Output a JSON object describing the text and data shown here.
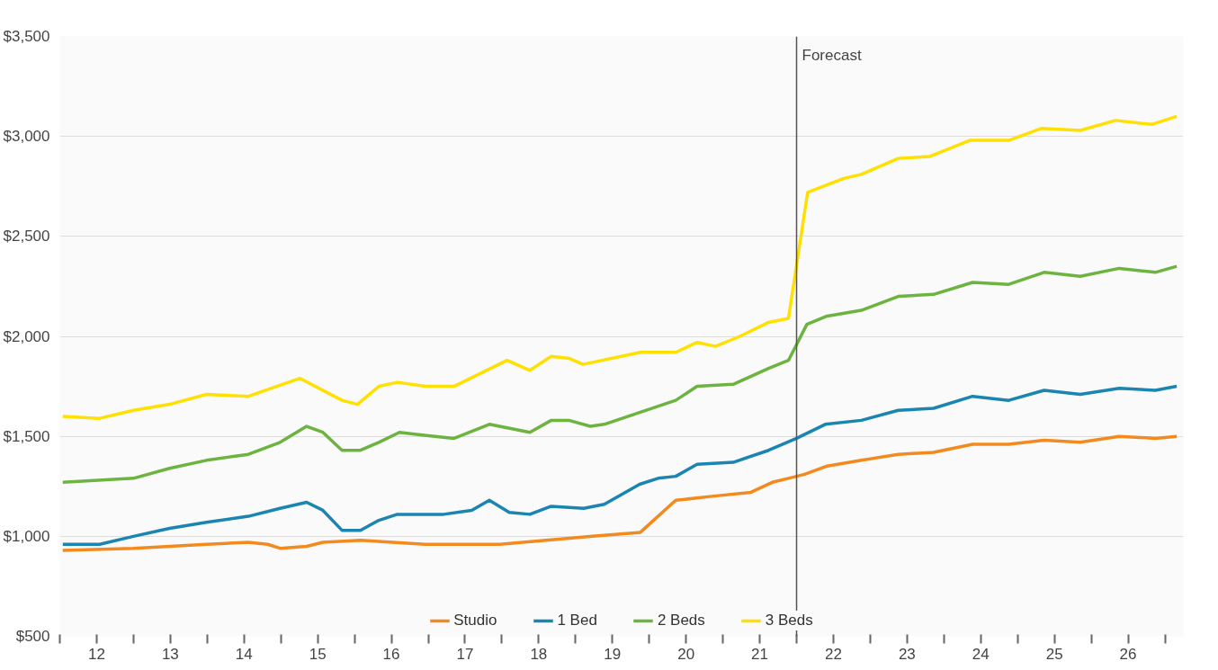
{
  "chart_data": {
    "type": "line",
    "xlim": [
      11.5,
      26.75
    ],
    "xticks": [
      {
        "value": 11.5,
        "label": null
      },
      12,
      {
        "value": 12.5,
        "label": null
      },
      13,
      {
        "value": 13.5,
        "label": null
      },
      14,
      {
        "value": 14.5,
        "label": null
      },
      15,
      {
        "value": 15.5,
        "label": null
      },
      16,
      {
        "value": 16.5,
        "label": null
      },
      17,
      {
        "value": 17.5,
        "label": null
      },
      18,
      {
        "value": 18.5,
        "label": null
      },
      19,
      {
        "value": 19.5,
        "label": null
      },
      20,
      {
        "value": 20.5,
        "label": null
      },
      21,
      {
        "value": 21.5,
        "label": null
      },
      22,
      {
        "value": 22.5,
        "label": null
      },
      23,
      {
        "value": 23.5,
        "label": null
      },
      24,
      {
        "value": 24.5,
        "label": null
      },
      25,
      {
        "value": 25.5,
        "label": null
      },
      26,
      {
        "value": 26.5,
        "label": null
      }
    ],
    "ylim": [
      500,
      3500
    ],
    "yticks": [
      {
        "value": 500,
        "label": "$500"
      },
      {
        "value": 1000,
        "label": "$1,000"
      },
      {
        "value": 1500,
        "label": "$1,500"
      },
      {
        "value": 2000,
        "label": "$2,000"
      },
      {
        "value": 2500,
        "label": "$2,500"
      },
      {
        "value": 3000,
        "label": "$3,000"
      },
      {
        "value": 3500,
        "label": "$3,500"
      }
    ],
    "grid": "y",
    "legend": "bottom",
    "marker": "none",
    "line_style": "solid",
    "ref_lines": [
      {
        "axis": "x",
        "value": 21.5,
        "label": "Forecast",
        "color": "#555555"
      }
    ],
    "series": [
      {
        "name": "Studio",
        "color": "#f28a1e",
        "x": [
          11.54,
          12.5,
          13.49,
          14.06,
          14.32,
          14.49,
          14.85,
          15.07,
          15.58,
          16.46,
          17.47,
          18.1,
          18.73,
          19.38,
          19.86,
          20.35,
          20.88,
          21.17,
          21.39,
          21.61,
          21.9,
          22.38,
          22.88,
          23.36,
          23.89,
          24.38,
          24.86,
          25.35,
          25.88,
          26.37,
          26.66
        ],
        "values": [
          930,
          940,
          960,
          970,
          960,
          940,
          950,
          970,
          980,
          960,
          960,
          980,
          1000,
          1020,
          1180,
          1200,
          1220,
          1270,
          1290,
          1310,
          1350,
          1380,
          1410,
          1420,
          1460,
          1460,
          1480,
          1470,
          1500,
          1490,
          1500
        ]
      },
      {
        "name": "1 Bed",
        "color": "#1a85b0",
        "x": [
          11.54,
          12.04,
          12.5,
          12.99,
          13.49,
          14.06,
          14.49,
          14.85,
          15.07,
          15.33,
          15.58,
          15.83,
          16.08,
          16.71,
          17.09,
          17.33,
          17.6,
          17.88,
          18.17,
          18.61,
          18.89,
          19.37,
          19.62,
          19.86,
          20.15,
          20.64,
          21.12,
          21.5,
          21.89,
          22.38,
          22.88,
          23.36,
          23.89,
          24.38,
          24.86,
          25.35,
          25.88,
          26.37,
          26.66
        ],
        "values": [
          960,
          960,
          1000,
          1040,
          1070,
          1100,
          1140,
          1170,
          1130,
          1030,
          1030,
          1080,
          1110,
          1110,
          1130,
          1180,
          1120,
          1110,
          1150,
          1140,
          1160,
          1260,
          1290,
          1300,
          1360,
          1370,
          1430,
          1490,
          1560,
          1580,
          1630,
          1640,
          1700,
          1680,
          1730,
          1710,
          1740,
          1730,
          1750
        ]
      },
      {
        "name": "2 Beds",
        "color": "#6db33f",
        "x": [
          11.54,
          12.5,
          12.99,
          13.49,
          14.06,
          14.49,
          14.85,
          15.07,
          15.33,
          15.58,
          15.83,
          16.11,
          16.34,
          16.59,
          16.85,
          17.33,
          17.88,
          18.17,
          18.41,
          18.7,
          18.89,
          19.86,
          20.15,
          20.64,
          21.12,
          21.39,
          21.64,
          21.9,
          22.38,
          22.88,
          23.36,
          23.89,
          24.38,
          24.86,
          25.35,
          25.88,
          26.37,
          26.66
        ],
        "values": [
          1270,
          1290,
          1340,
          1380,
          1410,
          1470,
          1550,
          1520,
          1430,
          1430,
          1470,
          1520,
          1510,
          1500,
          1490,
          1560,
          1520,
          1580,
          1580,
          1550,
          1560,
          1680,
          1750,
          1760,
          1840,
          1880,
          2060,
          2100,
          2130,
          2200,
          2210,
          2270,
          2260,
          2320,
          2300,
          2340,
          2320,
          2350
        ]
      },
      {
        "name": "3 Beds",
        "color": "#ffe000",
        "x": [
          11.54,
          12.04,
          12.5,
          12.99,
          13.49,
          14.06,
          14.76,
          15.33,
          15.54,
          15.83,
          16.08,
          16.46,
          16.65,
          16.85,
          17.57,
          17.88,
          18.17,
          18.41,
          18.6,
          19.38,
          19.86,
          20.15,
          20.4,
          20.73,
          21.12,
          21.39,
          21.65,
          22.14,
          22.38,
          22.88,
          23.31,
          23.85,
          24.38,
          24.82,
          25.35,
          25.83,
          26.32,
          26.66
        ],
        "values": [
          1600,
          1590,
          1630,
          1660,
          1710,
          1700,
          1790,
          1680,
          1660,
          1750,
          1770,
          1750,
          1750,
          1750,
          1880,
          1830,
          1900,
          1890,
          1860,
          1920,
          1920,
          1970,
          1950,
          2000,
          2070,
          2090,
          2720,
          2790,
          2810,
          2890,
          2900,
          2980,
          2980,
          3040,
          3030,
          3080,
          3060,
          3100
        ]
      }
    ]
  }
}
